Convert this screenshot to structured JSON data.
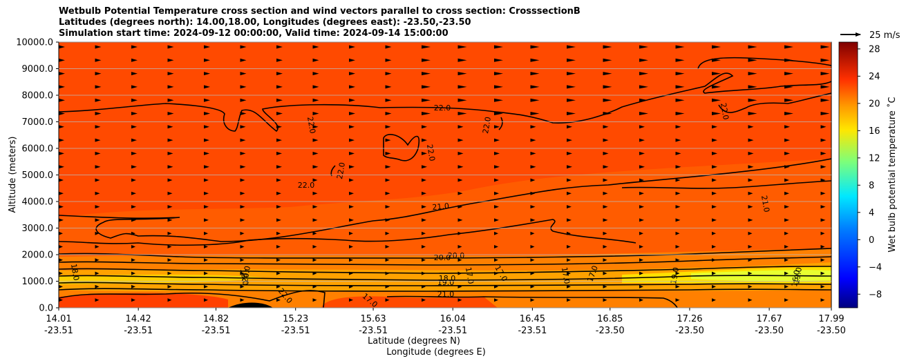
{
  "chart_data": {
    "type": "contourf",
    "title_lines": [
      "Wetbulb Potential Temperature cross section and wind vectors parallel to cross section: CrosssectionB",
      "Latitudes (degrees north): 14.00,18.00, Longitudes (degrees east): -23.50,-23.50",
      "Simulation start time: 2024-09-12 00:00:00, Valid time: 2024-09-14 15:00:00"
    ],
    "ylabel": "Altitude (meters)",
    "xlabel_lat": "Latitude (degrees N)",
    "xlabel_lon": "Longitude (degrees E)",
    "ylim": [
      0,
      10000
    ],
    "y_ticks": [
      "0.0",
      "1000.0",
      "2000.0",
      "3000.0",
      "4000.0",
      "5000.0",
      "6000.0",
      "7000.0",
      "8000.0",
      "9000.0",
      "10000.0"
    ],
    "x_ticks_lat": [
      "14.01",
      "14.42",
      "14.82",
      "15.23",
      "15.63",
      "16.04",
      "16.45",
      "16.85",
      "17.26",
      "17.67",
      "17.99"
    ],
    "x_ticks_lon": [
      "-23.51",
      "-23.51",
      "-23.51",
      "-23.51",
      "-23.51",
      "-23.51",
      "-23.51",
      "-23.50",
      "-23.50",
      "-23.50",
      "-23.50"
    ],
    "colorbar_label": "Wet bulb potential temperature ˚C",
    "colorbar_ticks": [
      "−8",
      "−4",
      "0",
      "4",
      "8",
      "12",
      "16",
      "20",
      "24",
      "28"
    ],
    "colorbar_range": [
      -10,
      29
    ],
    "quiver_key": "25 m/s",
    "contour_labels": [
      "22.0",
      "22.0",
      "22.0",
      "22.0",
      "22.0",
      "22.0",
      "22.0",
      "22.0",
      "21.0",
      "21.0",
      "21.0",
      "20.0",
      "20.0",
      "20.0",
      "19.0",
      "19.0",
      "19.0",
      "18.0",
      "18.0",
      "18.0",
      "17.0",
      "17.0",
      "17.0",
      "17.0",
      "17.0",
      "16.0"
    ],
    "field_description_values": {
      "upper_layer_c": 22,
      "mid_layer_c": 21,
      "low_layer_c": 17
    }
  }
}
